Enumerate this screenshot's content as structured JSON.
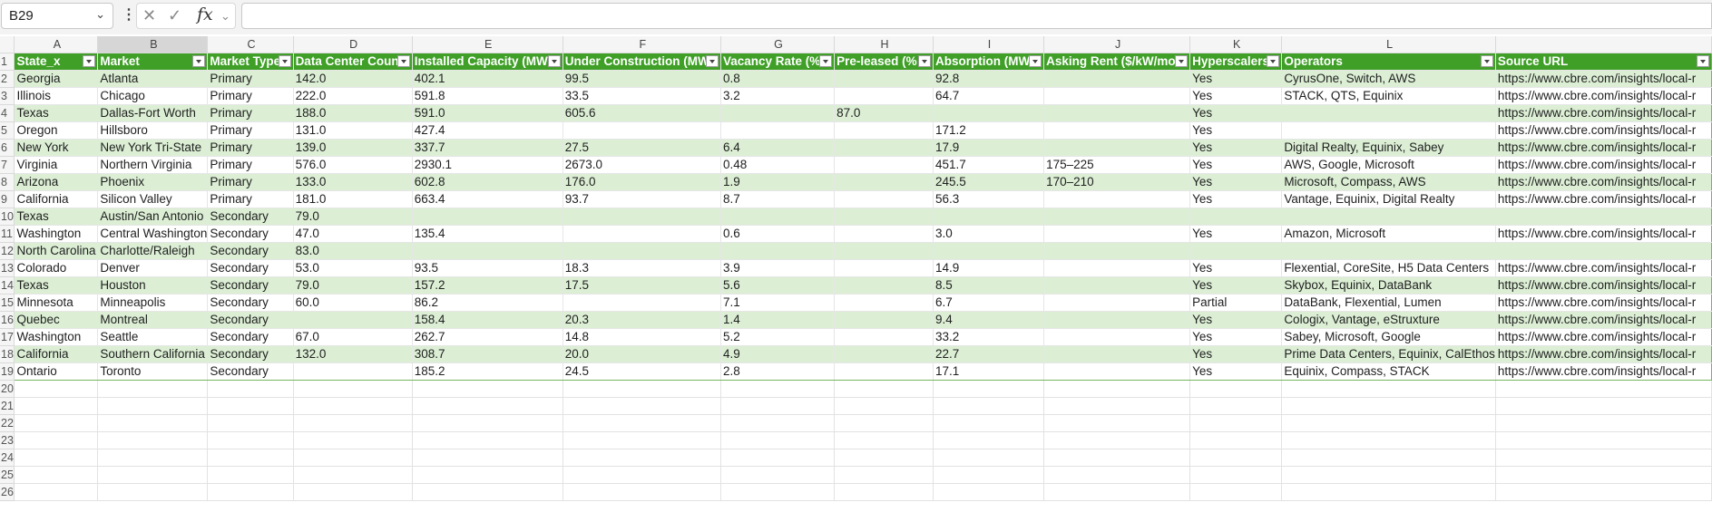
{
  "formula_bar": {
    "name_box": "B29",
    "fx_label": "fx",
    "formula_value": ""
  },
  "columns": [
    "A",
    "B",
    "C",
    "D",
    "E",
    "F",
    "G",
    "H",
    "I",
    "J",
    "K",
    "L",
    ""
  ],
  "headers": [
    "State_x",
    "Market",
    "Market Type",
    "Data Center Coun",
    "Installed Capacity (MW",
    "Under Construction (MW",
    "Vacancy Rate (%",
    "Pre-leased (%",
    "Absorption (MW",
    "Asking Rent ($/kW/mo",
    "Hyperscalers",
    "Operators",
    "Source URL"
  ],
  "rows": [
    [
      "Georgia",
      "Atlanta",
      "Primary",
      "142.0",
      "402.1",
      "99.5",
      "0.8",
      "",
      "92.8",
      "",
      "Yes",
      "CyrusOne, Switch, AWS",
      "https://www.cbre.com/insights/local-r"
    ],
    [
      "Illinois",
      "Chicago",
      "Primary",
      "222.0",
      "591.8",
      "33.5",
      "3.2",
      "",
      "64.7",
      "",
      "Yes",
      "STACK, QTS, Equinix",
      "https://www.cbre.com/insights/local-r"
    ],
    [
      "Texas",
      "Dallas-Fort Worth",
      "Primary",
      "188.0",
      "591.0",
      "605.6",
      "",
      "87.0",
      "",
      "",
      "Yes",
      "",
      "https://www.cbre.com/insights/local-r"
    ],
    [
      "Oregon",
      "Hillsboro",
      "Primary",
      "131.0",
      "427.4",
      "",
      "",
      "",
      "171.2",
      "",
      "Yes",
      "",
      "https://www.cbre.com/insights/local-r"
    ],
    [
      "New York",
      "New York Tri-State",
      "Primary",
      "139.0",
      "337.7",
      "27.5",
      "6.4",
      "",
      "17.9",
      "",
      "Yes",
      "Digital Realty, Equinix, Sabey",
      "https://www.cbre.com/insights/local-r"
    ],
    [
      "Virginia",
      "Northern Virginia",
      "Primary",
      "576.0",
      "2930.1",
      "2673.0",
      "0.48",
      "",
      "451.7",
      "175–225",
      "Yes",
      "AWS, Google, Microsoft",
      "https://www.cbre.com/insights/local-r"
    ],
    [
      "Arizona",
      "Phoenix",
      "Primary",
      "133.0",
      "602.8",
      "176.0",
      "1.9",
      "",
      "245.5",
      "170–210",
      "Yes",
      "Microsoft, Compass, AWS",
      "https://www.cbre.com/insights/local-r"
    ],
    [
      "California",
      "Silicon Valley",
      "Primary",
      "181.0",
      "663.4",
      "93.7",
      "8.7",
      "",
      "56.3",
      "",
      "Yes",
      "Vantage, Equinix, Digital Realty",
      "https://www.cbre.com/insights/local-r"
    ],
    [
      "Texas",
      "Austin/San Antonio",
      "Secondary",
      "79.0",
      "",
      "",
      "",
      "",
      "",
      "",
      "",
      "",
      ""
    ],
    [
      "Washington",
      "Central Washington",
      "Secondary",
      "47.0",
      "135.4",
      "",
      "0.6",
      "",
      "3.0",
      "",
      "Yes",
      "Amazon, Microsoft",
      "https://www.cbre.com/insights/local-r"
    ],
    [
      "North Carolina",
      "Charlotte/Raleigh",
      "Secondary",
      "83.0",
      "",
      "",
      "",
      "",
      "",
      "",
      "",
      "",
      ""
    ],
    [
      "Colorado",
      "Denver",
      "Secondary",
      "53.0",
      "93.5",
      "18.3",
      "3.9",
      "",
      "14.9",
      "",
      "Yes",
      "Flexential, CoreSite, H5 Data Centers",
      "https://www.cbre.com/insights/local-r"
    ],
    [
      "Texas",
      "Houston",
      "Secondary",
      "79.0",
      "157.2",
      "17.5",
      "5.6",
      "",
      "8.5",
      "",
      "Yes",
      "Skybox, Equinix, DataBank",
      "https://www.cbre.com/insights/local-r"
    ],
    [
      "Minnesota",
      "Minneapolis",
      "Secondary",
      "60.0",
      "86.2",
      "",
      "7.1",
      "",
      "6.7",
      "",
      "Partial",
      "DataBank, Flexential, Lumen",
      "https://www.cbre.com/insights/local-r"
    ],
    [
      "Quebec",
      "Montreal",
      "Secondary",
      "",
      "158.4",
      "20.3",
      "1.4",
      "",
      "9.4",
      "",
      "Yes",
      "Cologix, Vantage, eStruxture",
      "https://www.cbre.com/insights/local-r"
    ],
    [
      "Washington",
      "Seattle",
      "Secondary",
      "67.0",
      "262.7",
      "14.8",
      "5.2",
      "",
      "33.2",
      "",
      "Yes",
      "Sabey, Microsoft, Google",
      "https://www.cbre.com/insights/local-r"
    ],
    [
      "California",
      "Southern California",
      "Secondary",
      "132.0",
      "308.7",
      "20.0",
      "4.9",
      "",
      "22.7",
      "",
      "Yes",
      "Prime Data Centers, Equinix, CalEthos",
      "https://www.cbre.com/insights/local-r"
    ],
    [
      "Ontario",
      "Toronto",
      "Secondary",
      "",
      "185.2",
      "24.5",
      "2.8",
      "",
      "17.1",
      "",
      "Yes",
      "Equinix, Compass, STACK",
      "https://www.cbre.com/insights/local-r"
    ]
  ],
  "row_numbers": [
    "1",
    "2",
    "3",
    "4",
    "5",
    "6",
    "7",
    "8",
    "9",
    "10",
    "11",
    "12",
    "13",
    "14",
    "15",
    "16",
    "17",
    "18",
    "19",
    "20",
    "21",
    "22",
    "23",
    "24",
    "25",
    "26"
  ],
  "colors": {
    "header_green": "#3f9f27",
    "band_green": "#dcefd5"
  }
}
